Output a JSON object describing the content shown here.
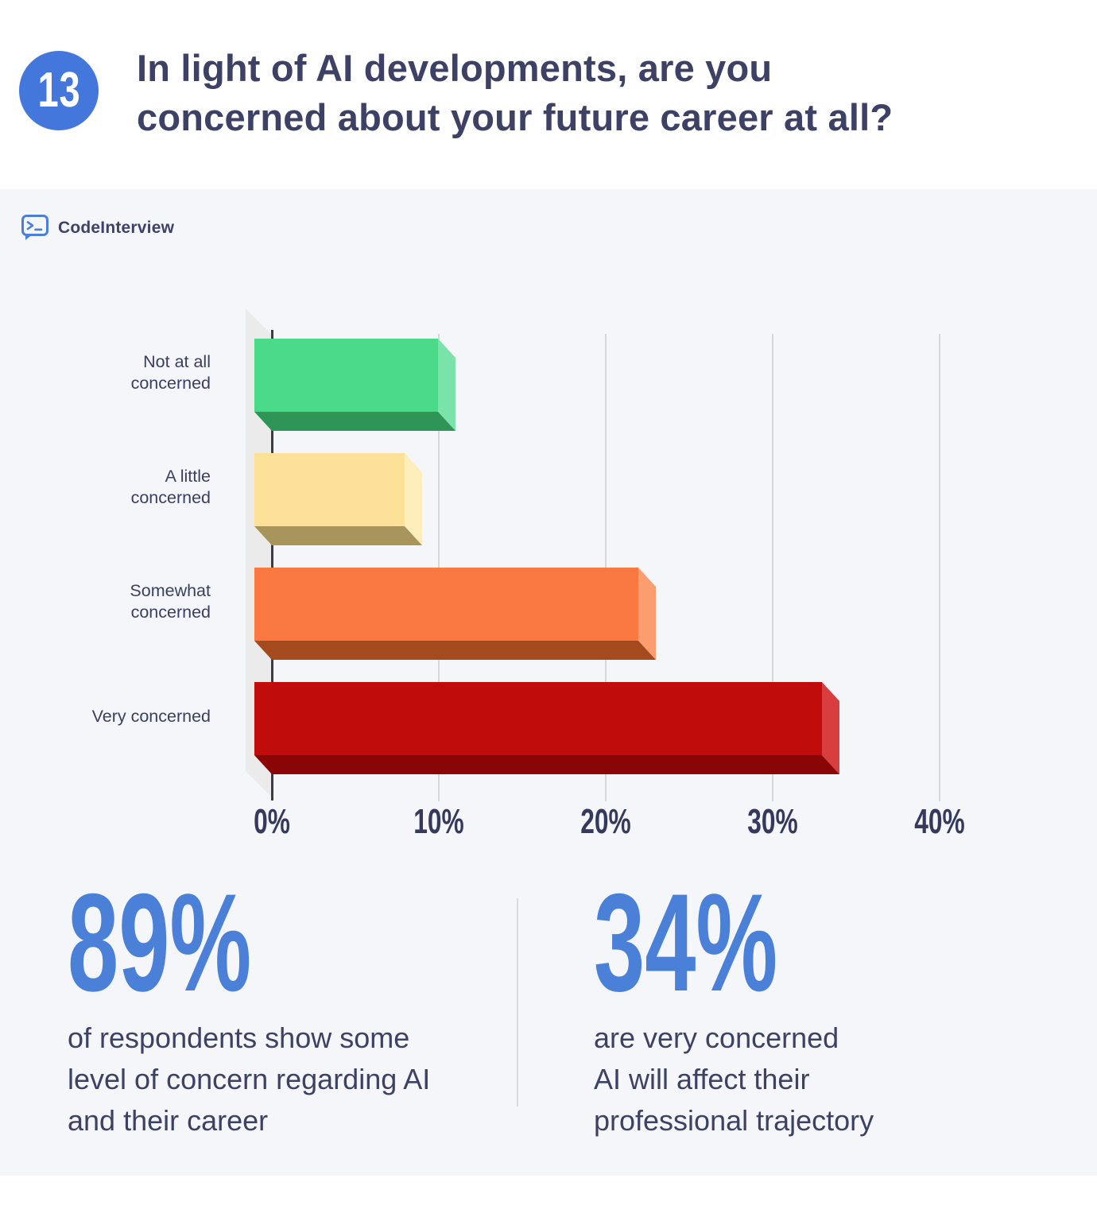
{
  "header": {
    "question_number": "13",
    "title_line1": "In light of AI developments, are you",
    "title_line2": "concerned about your future career at all?"
  },
  "brand": {
    "name": "CodeInterview",
    "icon": "terminal-chat-bubble-icon"
  },
  "chart_data": {
    "type": "bar",
    "orientation": "horizontal",
    "style": "3d-extruded",
    "title": "",
    "xlabel": "",
    "ylabel": "",
    "categories": [
      "Not at all concerned",
      "A little concerned",
      "Somewhat concerned",
      "Very concerned"
    ],
    "category_label_lines": [
      [
        "Not at all",
        "concerned"
      ],
      [
        "A little",
        "concerned"
      ],
      [
        "Somewhat",
        "concerned"
      ],
      [
        "Very concerned"
      ]
    ],
    "values": [
      11,
      9,
      23,
      34
    ],
    "unit": "%",
    "x_ticks": [
      "0%",
      "10%",
      "20%",
      "30%",
      "40%"
    ],
    "x_tick_values": [
      0,
      10,
      20,
      30,
      40
    ],
    "xlim": [
      0,
      45
    ],
    "grid": true,
    "legend": "none",
    "bar_colors": [
      {
        "face": "#4bd98a",
        "side": "#7ae3aa",
        "bottom": "#2e9557"
      },
      {
        "face": "#fde199",
        "side": "#feeebb",
        "bottom": "#a8955c"
      },
      {
        "face": "#f97941",
        "side": "#fb9d6f",
        "bottom": "#a34b1f"
      },
      {
        "face": "#c10c0c",
        "side": "#d93e3e",
        "bottom": "#8a0505"
      }
    ]
  },
  "stats": {
    "items": [
      {
        "value": "89%",
        "description_lines": [
          "of respondents show some",
          "level of concern regarding AI",
          "and their career"
        ]
      },
      {
        "value": "34%",
        "description_lines": [
          "are very concerned",
          "AI will affect their",
          "professional trajectory"
        ]
      }
    ]
  },
  "theme": {
    "accent_blue": "#4b80d8",
    "badge_blue": "#4477db",
    "navy_text": "#3d4166",
    "panel_background": "#f4f6fa",
    "page_background": "#ffffff",
    "gridline": "#d6d7db",
    "axis_line": "#3b3c44",
    "axis_wall": "#ebebeb",
    "divider": "#dadbe0"
  }
}
